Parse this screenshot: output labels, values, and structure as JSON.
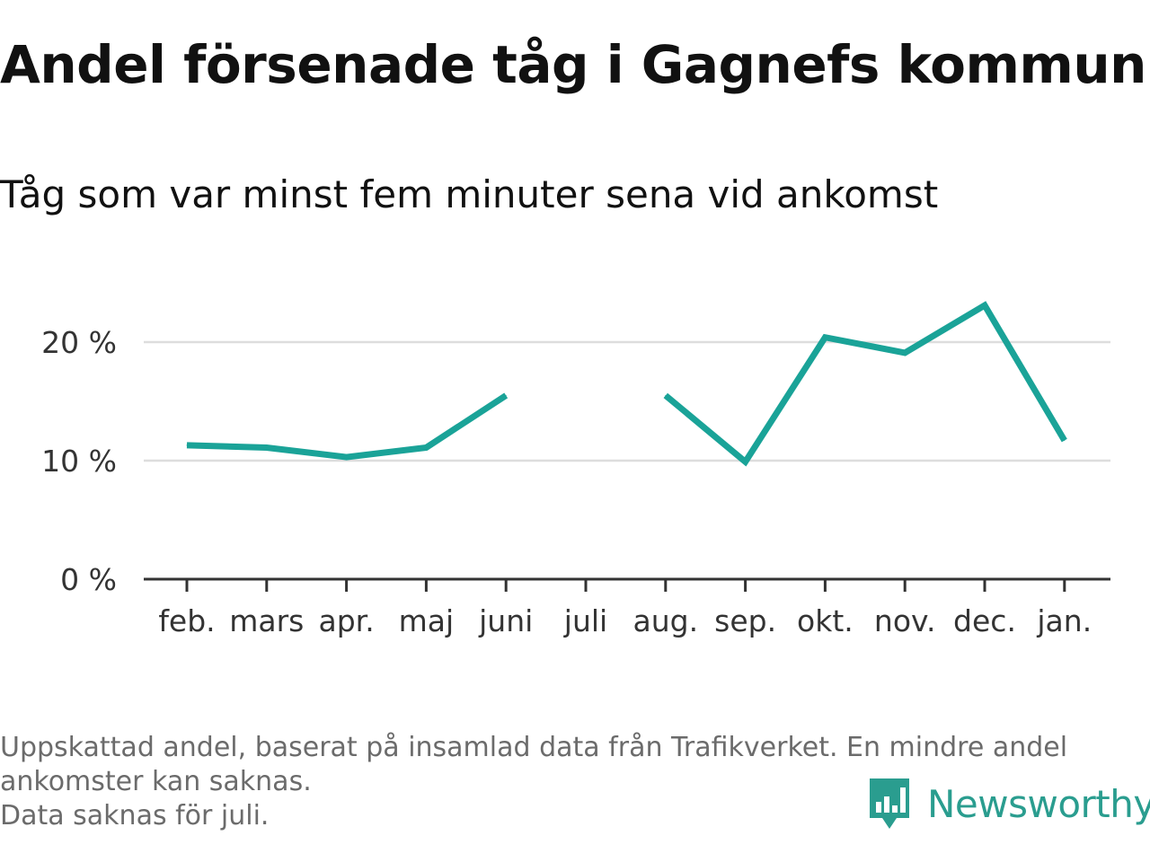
{
  "header": {
    "title": "Andel försenade tåg i Gagnefs kommun",
    "subtitle": "Tåg som var minst fem minuter sena vid ankomst"
  },
  "footer": {
    "note_line1": "Uppskattad andel, baserat på insamlad data från Trafikverket. En mindre andel",
    "note_line2": "ankomster kan saknas.",
    "note_line3": "Data saknas för juli.",
    "brand": "Newsworthy"
  },
  "colors": {
    "line": "#1aa398",
    "grid": "#dddddd",
    "axis": "#333333",
    "brand": "#2a9d8f"
  },
  "chart_data": {
    "type": "line",
    "title": "Andel försenade tåg i Gagnefs kommun",
    "subtitle": "Tåg som var minst fem minuter sena vid ankomst",
    "categories": [
      "feb.",
      "mars",
      "apr.",
      "maj",
      "juni",
      "juli",
      "aug.",
      "sep.",
      "okt.",
      "nov.",
      "dec.",
      "jan."
    ],
    "series": [
      {
        "values": [
          11.3,
          11.1,
          10.3,
          11.1,
          15.5,
          null,
          15.5,
          9.9,
          20.4,
          19.1,
          23.1,
          11.7
        ]
      }
    ],
    "yticks": [
      0,
      10,
      20
    ],
    "ytick_labels": [
      "0 %",
      "10 %",
      "20 %"
    ],
    "ylim": [
      0,
      25
    ],
    "xlabel": "",
    "ylabel": "",
    "grid": true,
    "legend": "none"
  }
}
